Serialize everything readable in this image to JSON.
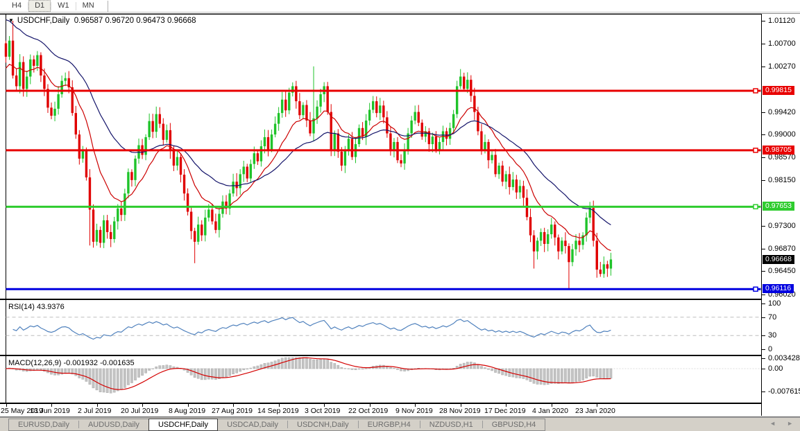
{
  "toolbar": {
    "timeframes": [
      "H4",
      "D1",
      "W1",
      "MN"
    ],
    "active": "D1"
  },
  "chart": {
    "symbol_label": "USDCHF,Daily",
    "ohlc_text": "0.96587 0.96720 0.96473 0.96668",
    "dropdown_glyph": "▼"
  },
  "panels": {
    "rsi": {
      "label_text": "RSI(14) 43.9376"
    },
    "macd": {
      "label_text": "MACD(12,26,9) -0.001932 -0.001635"
    }
  },
  "tabs": {
    "items": [
      {
        "label": "EURUSD,Daily",
        "active": false
      },
      {
        "label": "AUDUSD,Daily",
        "active": false
      },
      {
        "label": "USDCHF,Daily",
        "active": true
      },
      {
        "label": "USDCAD,Daily",
        "active": false
      },
      {
        "label": "USDCNH,Daily",
        "active": false
      },
      {
        "label": "EURGBP,H4",
        "active": false
      },
      {
        "label": "NZDUSD,H1",
        "active": false
      },
      {
        "label": "GBPUSD,H4",
        "active": false
      }
    ],
    "scroll_left_glyph": "◄",
    "scroll_right_glyph": "►"
  },
  "chart_data": {
    "type": "candlestick",
    "symbol": "USDCHF",
    "timeframe": "Daily",
    "title": "USDCHF,Daily 0.96587 0.96720 0.96473 0.96668",
    "x_labels": [
      "25 May 2019",
      "13 Jun 2019",
      "2 Jul 2019",
      "20 Jul 2019",
      "8 Aug 2019",
      "27 Aug 2019",
      "14 Sep 2019",
      "3 Oct 2019",
      "22 Oct 2019",
      "9 Nov 2019",
      "28 Nov 2019",
      "17 Dec 2019",
      "4 Jan 2020",
      "23 Jan 2020"
    ],
    "x_label_interval": 13,
    "closes": [
      1.0045,
      1.0075,
      1.001,
      0.999,
      1.0035,
      0.9985,
      1.0008,
      1.004,
      1.0028,
      1.0048,
      1.001,
      0.9985,
      0.995,
      0.9935,
      0.9948,
      0.9975,
      1.0,
      1.0005,
      0.9988,
      0.994,
      0.99,
      0.9855,
      0.987,
      0.982,
      0.976,
      0.97,
      0.9722,
      0.9698,
      0.974,
      0.9718,
      0.9705,
      0.9738,
      0.9762,
      0.975,
      0.979,
      0.983,
      0.9815,
      0.9855,
      0.988,
      0.9862,
      0.9895,
      0.9925,
      0.9905,
      0.9938,
      0.992,
      0.989,
      0.9908,
      0.987,
      0.9842,
      0.9858,
      0.9825,
      0.979,
      0.9756,
      0.972,
      0.97,
      0.9732,
      0.9712,
      0.9745,
      0.976,
      0.9738,
      0.9722,
      0.9752,
      0.9775,
      0.9762,
      0.979,
      0.9812,
      0.98,
      0.9826,
      0.984,
      0.9818,
      0.9845,
      0.9865,
      0.985,
      0.9878,
      0.9895,
      0.9872,
      0.99,
      0.992,
      0.994,
      0.9965,
      0.9945,
      0.9978,
      0.999,
      0.9962,
      0.9936,
      0.9955,
      0.9926,
      0.9902,
      0.993,
      0.9952,
      0.9975,
      0.999,
      0.9942,
      0.9872,
      0.9902,
      0.9868,
      0.9842,
      0.9872,
      0.9892,
      0.9858,
      0.9882,
      0.9912,
      0.9896,
      0.9926,
      0.9946,
      0.9962,
      0.994,
      0.9954,
      0.9932,
      0.9902,
      0.9872,
      0.9886,
      0.9852,
      0.9846,
      0.9872,
      0.9902,
      0.9926,
      0.9942,
      0.9922,
      0.9896,
      0.9906,
      0.9882,
      0.9896,
      0.9872,
      0.9886,
      0.9906,
      0.9892,
      0.9912,
      0.9938,
      0.999,
      1.0008,
      0.9985,
      1.0002,
      0.9972,
      0.9942,
      0.9906,
      0.9872,
      0.9886,
      0.9852,
      0.9862,
      0.9826,
      0.9842,
      0.9812,
      0.9826,
      0.9802,
      0.9816,
      0.9792,
      0.9804,
      0.9782,
      0.9746,
      0.9712,
      0.9682,
      0.9702,
      0.9718,
      0.9696,
      0.9714,
      0.9732,
      0.9708,
      0.9682,
      0.9702,
      0.9692,
      0.9662,
      0.9686,
      0.9702,
      0.9694,
      0.9712,
      0.9745,
      0.9763,
      0.9702,
      0.9648,
      0.964,
      0.9658,
      0.965,
      0.9667
    ],
    "spike_highs": {
      "2": 1.0112,
      "43": 0.9952,
      "88": 1.0027,
      "130": 1.0022,
      "167": 0.9766
    },
    "spike_lows": {
      "24": 0.9693,
      "30": 0.969,
      "54": 0.966,
      "96": 0.9832,
      "151": 0.965,
      "161": 0.9612,
      "169": 0.9633
    },
    "bull_color": "#1fc32a",
    "bear_color": "#e00000",
    "price_ticks": [
      {
        "label": "1.01120",
        "value": 1.0112
      },
      {
        "label": "1.00700",
        "value": 1.007
      },
      {
        "label": "1.00270",
        "value": 1.0027
      },
      {
        "label": "0.99420",
        "value": 0.9942
      },
      {
        "label": "0.99000",
        "value": 0.99
      },
      {
        "label": "0.98570",
        "value": 0.9857
      },
      {
        "label": "0.98150",
        "value": 0.9815
      },
      {
        "label": "0.97300",
        "value": 0.973
      },
      {
        "label": "0.96870",
        "value": 0.9687
      },
      {
        "label": "0.96450",
        "value": 0.9645
      },
      {
        "label": "0.96020",
        "value": 0.9602
      }
    ],
    "levels": [
      {
        "label": "0.99815",
        "value": 0.99815,
        "color": "#e80000"
      },
      {
        "label": "0.98705",
        "value": 0.98705,
        "color": "#e80000"
      },
      {
        "label": "0.97653",
        "value": 0.97653,
        "color": "#2ecc2e"
      },
      {
        "label": "0.96116",
        "value": 0.96116,
        "color": "#0000e0"
      }
    ],
    "current_price": {
      "label": "0.96668",
      "value": 0.96668,
      "color": "#000000"
    },
    "moving_averages": [
      {
        "name": "fast-ma",
        "period": 13,
        "color": "#cc0000",
        "seed": 1.002
      },
      {
        "name": "slow-ma",
        "period": 34,
        "color": "#14146a",
        "seed": 1.0118
      }
    ],
    "rsi": {
      "period": 14,
      "current_value": "43.9376",
      "color": "#4f81bd",
      "axis_ticks": [
        {
          "label": "100",
          "value": 100
        },
        {
          "label": "70",
          "value": 70,
          "dashed": true
        },
        {
          "label": "30",
          "value": 30,
          "dashed": true
        },
        {
          "label": "0",
          "value": 0
        }
      ]
    },
    "macd": {
      "fast": 12,
      "slow": 26,
      "signal": 9,
      "bar_color": "#c4c4c4",
      "bar_edge": "#a8a8a8",
      "signal_color": "#d40000",
      "axis_ticks": [
        {
          "label": "0.003428",
          "value": 0.003428
        },
        {
          "label": "0.00",
          "value": 0
        },
        {
          "label": "-0.007615",
          "value": -0.007615
        }
      ]
    }
  }
}
